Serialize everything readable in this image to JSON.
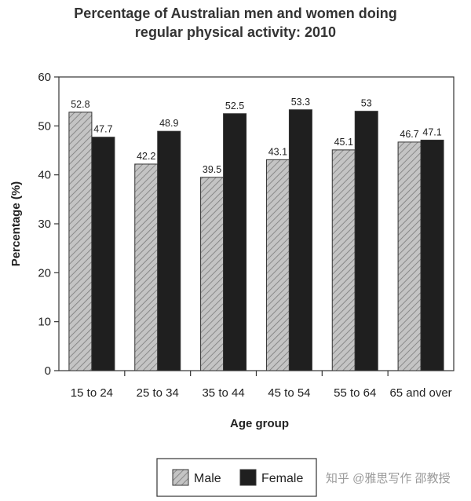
{
  "chart_data": {
    "type": "bar",
    "title_line1": "Percentage of Australian men and women doing",
    "title_line2": "regular physical activity: 2010",
    "xlabel": "Age group",
    "ylabel": "Percentage (%)",
    "ylim": [
      0,
      60
    ],
    "yticks": [
      "0",
      "10",
      "20",
      "30",
      "40",
      "50",
      "60"
    ],
    "categories": [
      "15 to 24",
      "25 to 34",
      "35 to 44",
      "45 to 54",
      "55 to 64",
      "65 and over"
    ],
    "series": [
      {
        "name": "Male",
        "values": [
          52.8,
          42.2,
          39.5,
          43.1,
          45.1,
          46.7
        ],
        "labels": [
          "52.8",
          "42.2",
          "39.5",
          "43.1",
          "45.1",
          "46.7"
        ],
        "fill": "hatched-grey"
      },
      {
        "name": "Female",
        "values": [
          47.7,
          48.9,
          52.5,
          53.3,
          53,
          47.1
        ],
        "labels": [
          "47.7",
          "48.9",
          "52.5",
          "53.3",
          "53",
          "47.1"
        ],
        "fill": "#1f1f1f"
      }
    ],
    "legend_position": "bottom-center",
    "grid": false
  },
  "watermark": "知乎 @雅思写作 邵教授",
  "colors": {
    "male_base": "#c4c4c4",
    "male_hatch": "#7a7a7a",
    "female": "#1f1f1f",
    "axis": "#333333"
  }
}
